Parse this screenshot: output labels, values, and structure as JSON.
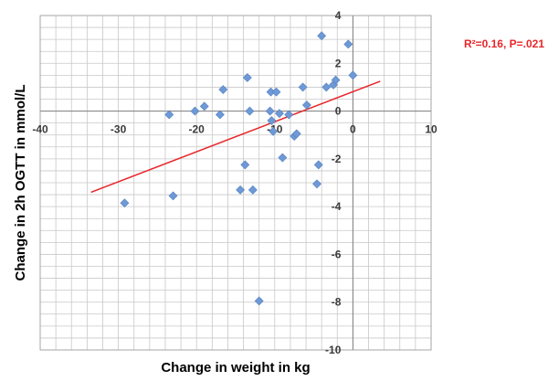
{
  "chart_data": {
    "type": "scatter",
    "title": "",
    "xlabel": "Change in weight in kg",
    "ylabel": "Change in 2h OGTT in mmol/L",
    "xlim": [
      -40,
      10
    ],
    "ylim": [
      -10,
      4
    ],
    "x_ticks": [
      -40,
      -30,
      -20,
      -10,
      0,
      10
    ],
    "y_ticks": [
      4,
      2,
      0,
      -2,
      -4,
      -6,
      -8,
      -10
    ],
    "x_tick_labels": [
      "-40",
      "-30",
      "-20",
      "-10",
      "0",
      "10"
    ],
    "y_tick_labels": [
      "4",
      "2",
      "0",
      "-2",
      "-4",
      "-6",
      "-8",
      "-10"
    ],
    "grid": true,
    "points": [
      {
        "x": -29.2,
        "y": -3.85
      },
      {
        "x": -23.5,
        "y": -0.15
      },
      {
        "x": -23.0,
        "y": -3.55
      },
      {
        "x": -20.2,
        "y": 0.0
      },
      {
        "x": -19.0,
        "y": 0.2
      },
      {
        "x": -17.0,
        "y": -0.15
      },
      {
        "x": -16.6,
        "y": 0.9
      },
      {
        "x": -14.4,
        "y": -3.3
      },
      {
        "x": -13.8,
        "y": -2.25
      },
      {
        "x": -13.5,
        "y": 1.4
      },
      {
        "x": -13.2,
        "y": 0.0
      },
      {
        "x": -12.8,
        "y": -3.3
      },
      {
        "x": -12.0,
        "y": -7.95
      },
      {
        "x": -10.6,
        "y": 0.0
      },
      {
        "x": -10.5,
        "y": 0.8
      },
      {
        "x": -10.4,
        "y": -0.4
      },
      {
        "x": -10.2,
        "y": -0.85
      },
      {
        "x": -9.8,
        "y": 0.8
      },
      {
        "x": -9.4,
        "y": -0.1
      },
      {
        "x": -9.0,
        "y": -1.95
      },
      {
        "x": -8.2,
        "y": -0.15
      },
      {
        "x": -7.5,
        "y": -1.05
      },
      {
        "x": -7.2,
        "y": -0.95
      },
      {
        "x": -6.4,
        "y": 1.0
      },
      {
        "x": -5.9,
        "y": 0.25
      },
      {
        "x": -4.6,
        "y": -3.05
      },
      {
        "x": -4.4,
        "y": -2.25
      },
      {
        "x": -4.0,
        "y": 3.15
      },
      {
        "x": -3.4,
        "y": 1.0
      },
      {
        "x": -2.5,
        "y": 1.1
      },
      {
        "x": -2.2,
        "y": 1.3
      },
      {
        "x": -0.6,
        "y": 2.8
      },
      {
        "x": 0.0,
        "y": 1.5
      }
    ],
    "trendline": {
      "x": [
        -33.5,
        3.5
      ],
      "y": [
        -3.4,
        1.25
      ]
    },
    "annotation": "R²=0.16, P=.021",
    "colors": {
      "points": "#6f99d6",
      "trendline": "#e8262a",
      "annotation": "#e8262a",
      "grid": "#c8c8c8"
    }
  }
}
